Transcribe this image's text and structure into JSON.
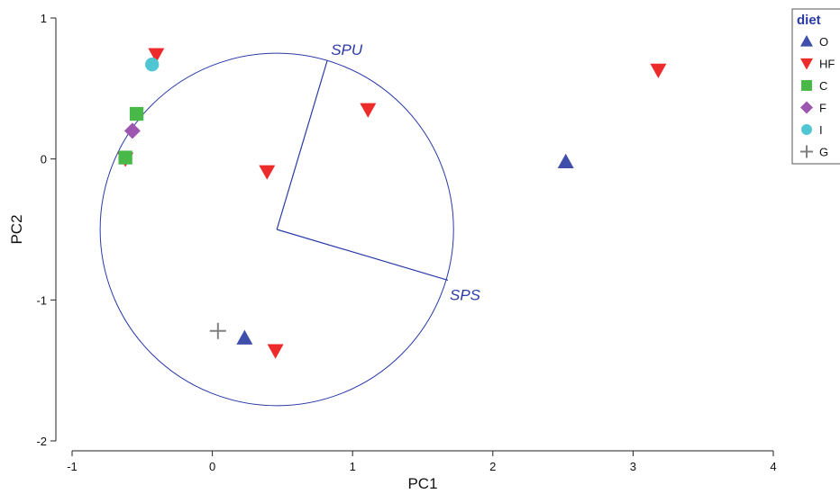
{
  "chart_data": {
    "type": "scatter",
    "title": "",
    "xlabel": "PC1",
    "ylabel": "PC2",
    "xlim": [
      -1,
      4
    ],
    "ylim": [
      -2,
      1
    ],
    "xticks": [
      "-1",
      "0",
      "1",
      "2",
      "3",
      "4"
    ],
    "yticks": [
      "-2",
      "-1",
      "0",
      "1"
    ],
    "grid": false,
    "legend": {
      "title": "diet",
      "placement": "top-right",
      "entries": [
        {
          "label": "O",
          "marker": "triangle-up",
          "color": "#3f4faa"
        },
        {
          "label": "HF",
          "marker": "triangle-down",
          "color": "#ee2b2b"
        },
        {
          "label": "C",
          "marker": "square",
          "color": "#48b848"
        },
        {
          "label": "F",
          "marker": "diamond",
          "color": "#9d57b0"
        },
        {
          "label": "I",
          "marker": "circle",
          "color": "#4fc6d2"
        },
        {
          "label": "G",
          "marker": "plus",
          "color": "#808080"
        }
      ]
    },
    "series": [
      {
        "name": "O",
        "points": [
          [
            2.52,
            -0.02
          ],
          [
            0.23,
            -1.27
          ]
        ]
      },
      {
        "name": "HF",
        "points": [
          [
            -0.4,
            0.74
          ],
          [
            3.18,
            0.63
          ],
          [
            1.11,
            0.35
          ],
          [
            0.39,
            -0.09
          ],
          [
            0.45,
            -1.36
          ],
          [
            -0.62,
            0.0
          ]
        ]
      },
      {
        "name": "C",
        "points": [
          [
            -0.54,
            0.32
          ],
          [
            -0.62,
            0.01
          ]
        ]
      },
      {
        "name": "F",
        "points": [
          [
            -0.57,
            0.2
          ]
        ]
      },
      {
        "name": "I",
        "points": [
          [
            -0.43,
            0.67
          ]
        ]
      },
      {
        "name": "G",
        "points": [
          [
            0.04,
            -1.22
          ]
        ]
      }
    ],
    "overlay": {
      "circle_center": [
        0.46,
        -0.5
      ],
      "circle_radius_x": 1.26,
      "circle_radius_y": 1.25,
      "vectors": [
        {
          "label": "SPU",
          "to": [
            0.82,
            0.7
          ]
        },
        {
          "label": "SPS",
          "to": [
            1.68,
            -0.86
          ]
        }
      ]
    }
  }
}
